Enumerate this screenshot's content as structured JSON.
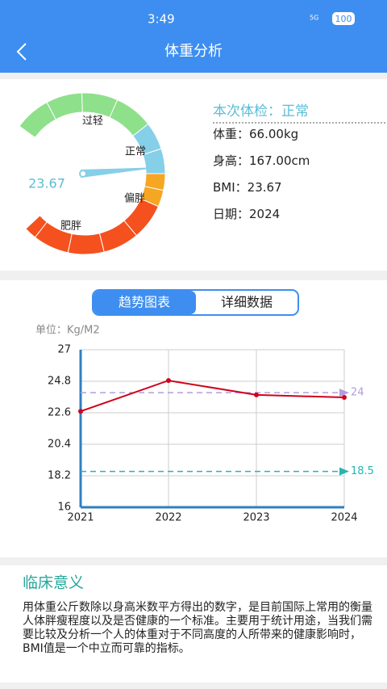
{
  "status_bar": {
    "time": "3:49",
    "network": "5G",
    "battery": "100"
  },
  "header": {
    "title": "体重分析"
  },
  "gauge": {
    "labels": [
      "过轻",
      "正常",
      "偏胖",
      "肥胖"
    ],
    "value": "23.67"
  },
  "info": {
    "status": "本次体检：正常",
    "rows": [
      "体重：66.00kg",
      "身高：167.00cm",
      "BMI：23.67",
      "日期：2024"
    ]
  },
  "tabs": [
    "趋势图表",
    "详细数据"
  ],
  "chart_data": {
    "type": "line",
    "unit_label": "单位：Kg/M2",
    "x": [
      2021,
      2022,
      2023,
      2024
    ],
    "xlim": [
      2021,
      2024
    ],
    "xticks": [
      2021,
      2022,
      2023,
      2024
    ],
    "ylim": [
      16,
      27
    ],
    "yticks": [
      16,
      18.2,
      20.4,
      22.6,
      24.8,
      27
    ],
    "grid": true,
    "series": [
      {
        "name": "BMI",
        "color": "#d0021b",
        "values": [
          22.7,
          24.85,
          23.85,
          23.67
        ]
      }
    ],
    "reference_lines": [
      {
        "value": 24,
        "color": "#b39ddb"
      },
      {
        "value": 18.5,
        "color": "#26b5b0"
      }
    ]
  },
  "clinical": {
    "title": "临床意义",
    "text": "用体重公斤数除以身高米数平方得出的数字，是目前国际上常用的衡量人体胖瘦程度以及是否健康的一个标准。主要用于统计用途，当我们需要比较及分析一个人的体重对于不同高度的人所带来的健康影响时，BMI值是一个中立而可靠的指标。"
  }
}
